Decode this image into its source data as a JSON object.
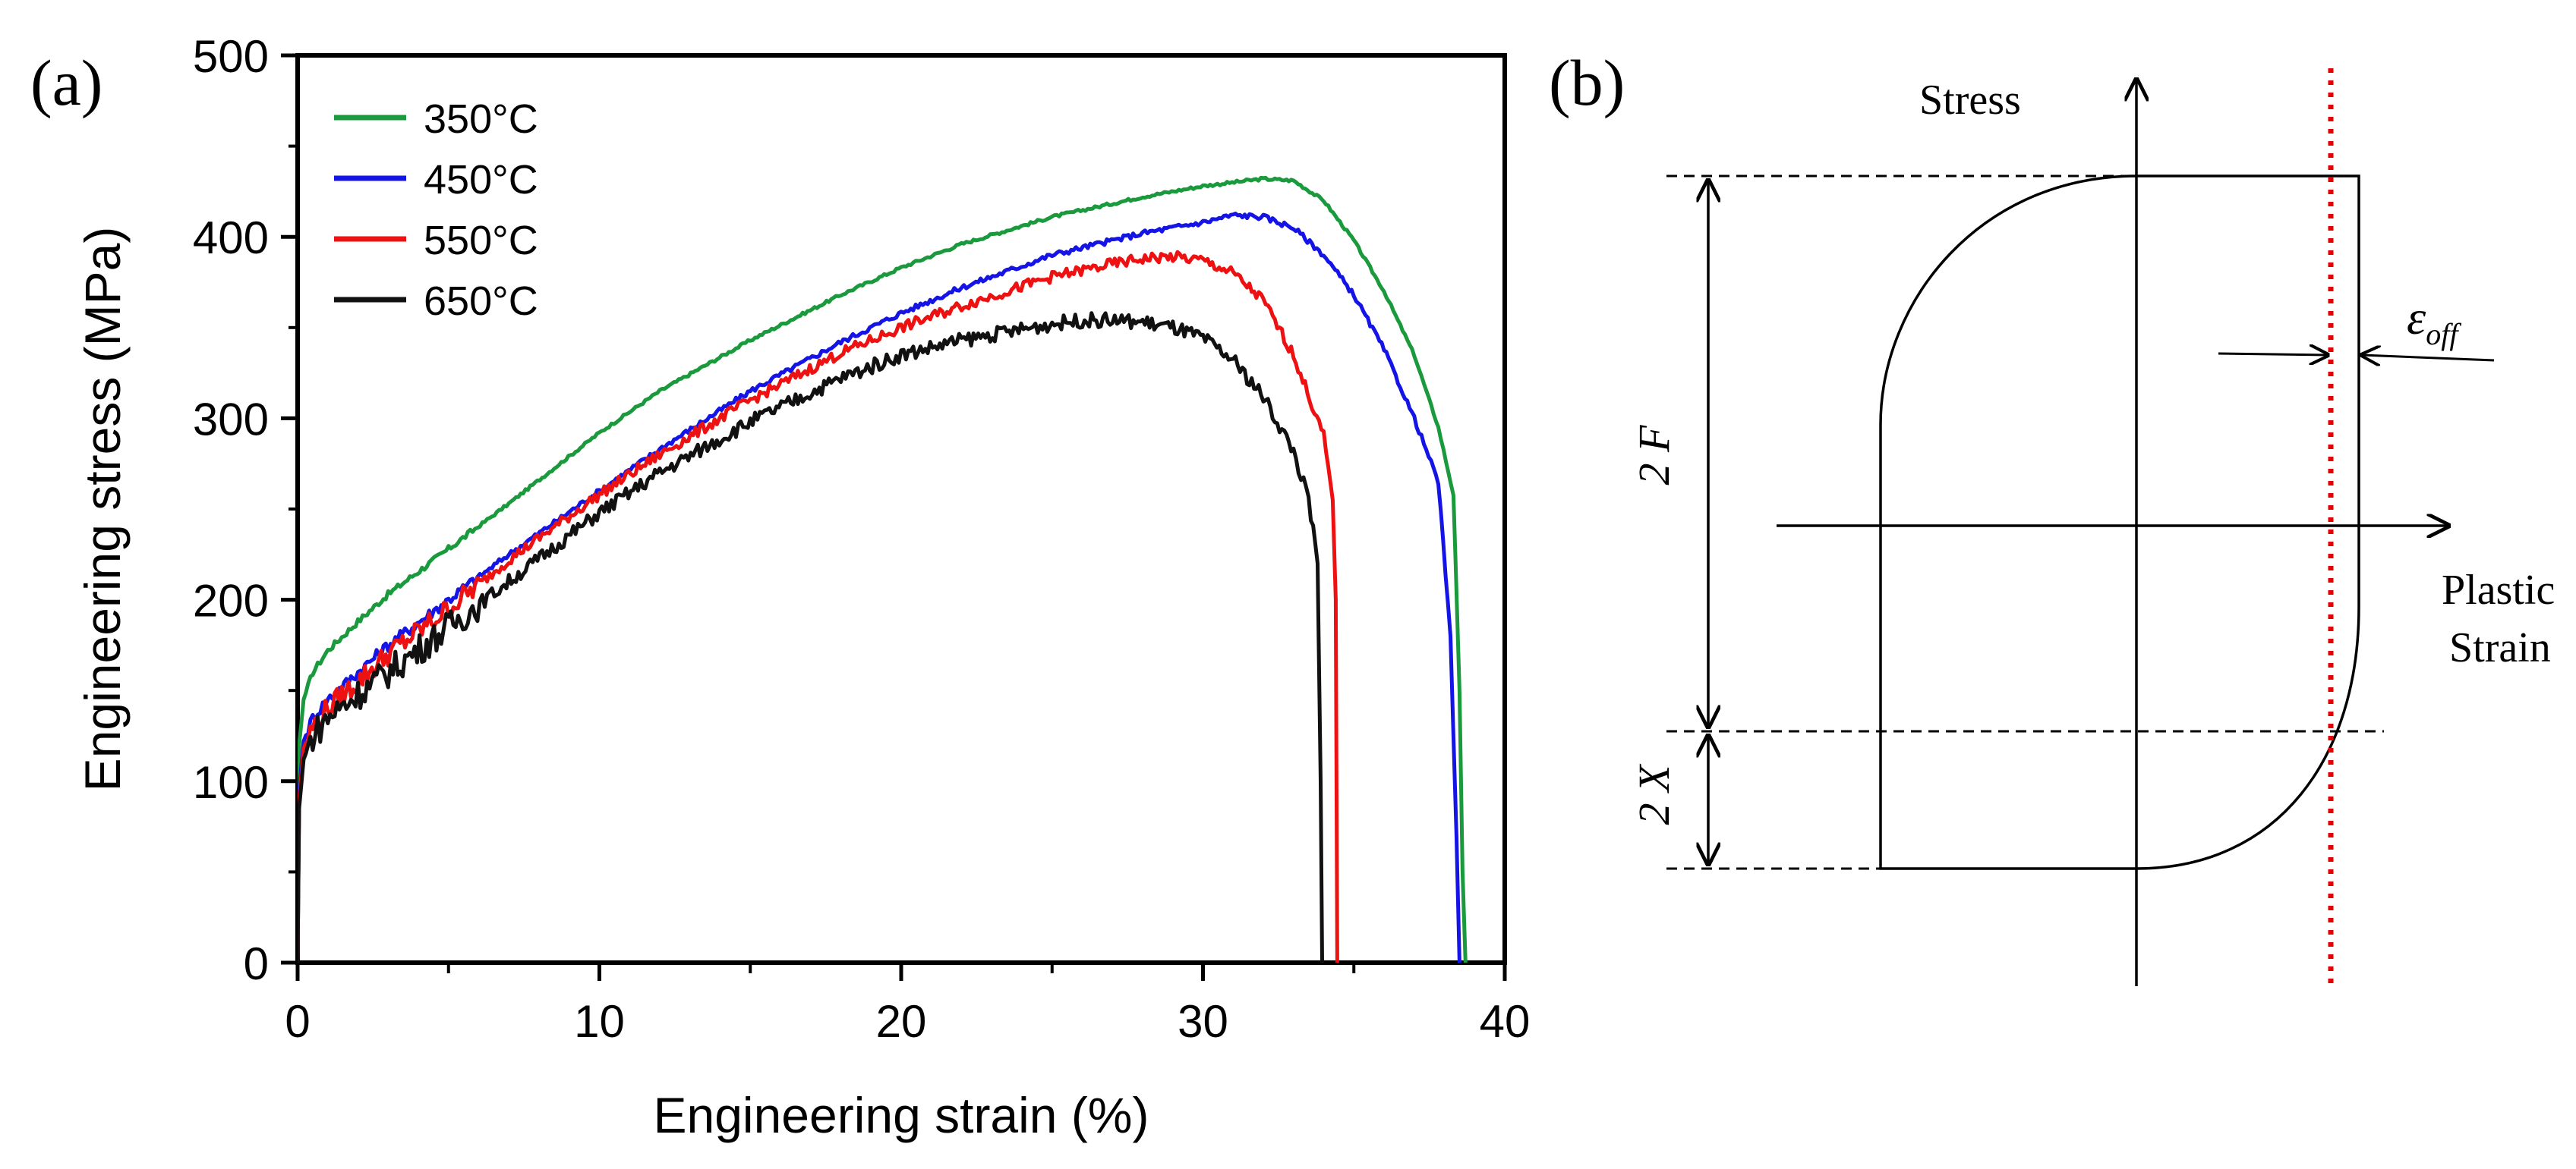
{
  "panel_a": {
    "label": "(a)",
    "chart_data": {
      "type": "line",
      "title": "",
      "xlabel": "Engineering strain (%)",
      "ylabel": "Engineering stress (MPa)",
      "xlim": [
        0,
        40
      ],
      "ylim": [
        0,
        500
      ],
      "xticks": [
        0,
        10,
        20,
        30,
        40
      ],
      "yticks": [
        0,
        100,
        200,
        300,
        400,
        500
      ],
      "grid": false,
      "legend": "top-left",
      "series": [
        {
          "name": "350°C",
          "color": "#1a9a3c",
          "x": [
            0,
            0.05,
            0.2,
            0.5,
            1,
            2,
            3,
            5,
            7,
            10,
            12,
            15,
            18,
            20,
            22,
            25,
            28,
            30,
            32,
            33,
            34,
            35,
            36,
            37,
            37.8,
            38.3,
            38.5,
            38.6,
            38.7
          ],
          "y": [
            0,
            120,
            145,
            160,
            172,
            188,
            203,
            228,
            253,
            292,
            315,
            343,
            368,
            383,
            396,
            411,
            422,
            428,
            432,
            431,
            420,
            398,
            370,
            335,
            295,
            258,
            150,
            50,
            0
          ]
        },
        {
          "name": "450°C",
          "color": "#1414e6",
          "x": [
            0,
            0.05,
            0.2,
            0.5,
            1,
            2,
            3,
            5,
            7,
            10,
            12,
            15,
            18,
            20,
            22,
            25,
            28,
            30,
            31,
            32,
            33,
            34,
            35,
            36,
            37,
            37.8,
            38.2,
            38.4,
            38.5
          ],
          "y": [
            0,
            95,
            122,
            135,
            145,
            160,
            175,
            200,
            225,
            260,
            283,
            315,
            342,
            358,
            372,
            390,
            402,
            408,
            412,
            411,
            405,
            390,
            368,
            338,
            300,
            265,
            180,
            70,
            0
          ]
        },
        {
          "name": "550°C",
          "color": "#ee1111",
          "x": [
            0,
            0.05,
            0.2,
            0.5,
            1,
            2,
            3,
            5,
            7,
            10,
            12,
            15,
            18,
            20,
            22,
            25,
            27,
            28,
            29,
            30,
            31,
            32,
            33,
            34,
            34.3,
            34.4,
            34.45
          ],
          "y": [
            0,
            90,
            118,
            130,
            140,
            155,
            170,
            195,
            222,
            258,
            280,
            310,
            336,
            350,
            362,
            378,
            385,
            388,
            389,
            387,
            380,
            365,
            335,
            290,
            255,
            200,
            0
          ]
        },
        {
          "name": "650°C",
          "color": "#111111",
          "x": [
            0,
            0.05,
            0.2,
            0.5,
            1,
            2,
            3,
            5,
            7,
            10,
            12,
            15,
            18,
            20,
            22,
            25,
            26,
            27,
            28,
            29,
            30,
            31,
            32,
            33,
            33.5,
            33.8,
            33.9,
            33.95
          ],
          "y": [
            0,
            85,
            112,
            125,
            135,
            148,
            160,
            185,
            210,
            248,
            270,
            298,
            322,
            335,
            343,
            352,
            354,
            354,
            353,
            350,
            344,
            332,
            312,
            282,
            255,
            220,
            100,
            0
          ]
        }
      ]
    }
  },
  "panel_b": {
    "label": "(b)",
    "y_axis_label": "Stress",
    "x_axis_label_line1": "Plastic",
    "x_axis_label_line2": "Strain",
    "dim_2f": "2 F",
    "dim_2x": "2 X",
    "eps_symbol": "ε",
    "eps_subscript": "off",
    "curve_color": "#000000",
    "offset_line_color": "#e60000"
  }
}
